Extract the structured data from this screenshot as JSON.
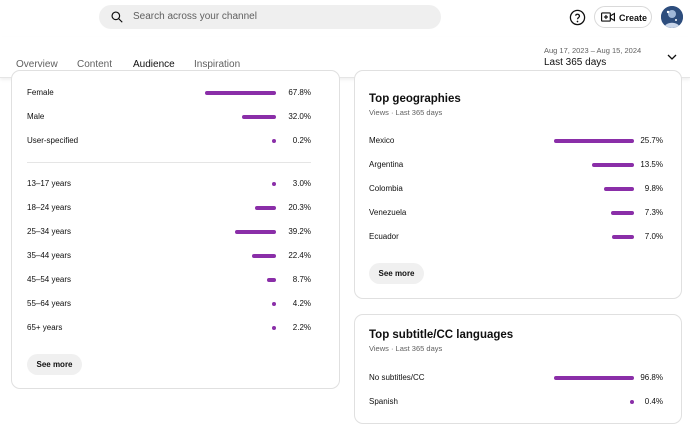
{
  "search": {
    "placeholder": "Search across your channel"
  },
  "header": {
    "create_label": "Create"
  },
  "tabs": [
    {
      "label": "Overview"
    },
    {
      "label": "Content"
    },
    {
      "label": "Audience"
    },
    {
      "label": "Inspiration"
    }
  ],
  "period": {
    "range": "Aug 17, 2023 – Aug 15, 2024",
    "label": "Last 365 days"
  },
  "accent_color": "#8a2ea8",
  "gender": [
    {
      "label": "Female",
      "value": "67.8%",
      "fraction": 0.678
    },
    {
      "label": "Male",
      "value": "32.0%",
      "fraction": 0.32
    },
    {
      "label": "User-specified",
      "value": "0.2%",
      "fraction": 0.002
    }
  ],
  "age": [
    {
      "label": "13–17 years",
      "value": "3.0%",
      "fraction": 0.03
    },
    {
      "label": "18–24 years",
      "value": "20.3%",
      "fraction": 0.203
    },
    {
      "label": "25–34 years",
      "value": "39.2%",
      "fraction": 0.392
    },
    {
      "label": "35–44 years",
      "value": "22.4%",
      "fraction": 0.224
    },
    {
      "label": "45–54 years",
      "value": "8.7%",
      "fraction": 0.087
    },
    {
      "label": "55–64 years",
      "value": "4.2%",
      "fraction": 0.042
    },
    {
      "label": "65+ years",
      "value": "2.2%",
      "fraction": 0.022
    }
  ],
  "left_card": {
    "see_more": "See more"
  },
  "geo": {
    "title": "Top geographies",
    "subtitle": "Views · Last 365 days",
    "see_more": "See more",
    "rows": [
      {
        "label": "Mexico",
        "value": "25.7%",
        "fraction": 0.257
      },
      {
        "label": "Argentina",
        "value": "13.5%",
        "fraction": 0.135
      },
      {
        "label": "Colombia",
        "value": "9.8%",
        "fraction": 0.098
      },
      {
        "label": "Venezuela",
        "value": "7.3%",
        "fraction": 0.073
      },
      {
        "label": "Ecuador",
        "value": "7.0%",
        "fraction": 0.07
      }
    ]
  },
  "subs": {
    "title": "Top subtitle/CC languages",
    "subtitle": "Views · Last 365 days",
    "rows": [
      {
        "label": "No subtitles/CC",
        "value": "96.8%",
        "fraction": 0.968
      },
      {
        "label": "Spanish",
        "value": "0.4%",
        "fraction": 0.004
      }
    ]
  }
}
